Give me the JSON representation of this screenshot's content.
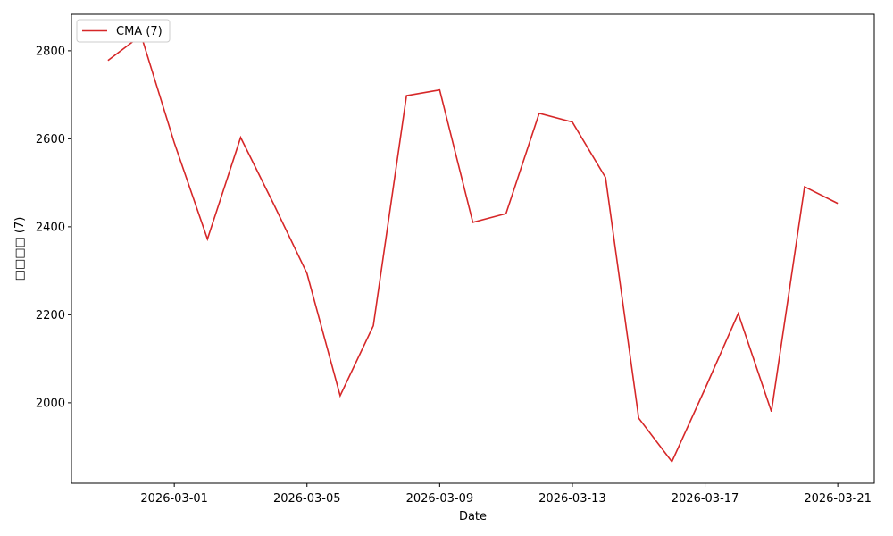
{
  "chart_data": {
    "type": "line",
    "xlabel": "Date",
    "ylabel": "□□□□ (7)",
    "x": [
      "2026-02-27",
      "2026-02-28",
      "2026-03-01",
      "2026-03-02",
      "2026-03-03",
      "2026-03-04",
      "2026-03-05",
      "2026-03-06",
      "2026-03-07",
      "2026-03-08",
      "2026-03-09",
      "2026-03-10",
      "2026-03-11",
      "2026-03-12",
      "2026-03-13",
      "2026-03-14",
      "2026-03-15",
      "2026-03-16",
      "2026-03-17",
      "2026-03-18",
      "2026-03-19",
      "2026-03-20",
      "2026-03-21"
    ],
    "series": [
      {
        "name": "CMA (7)",
        "color": "#d62728",
        "values": [
          2778,
          2835,
          2591,
          2372,
          2603,
          2451,
          2294,
          2016,
          2175,
          2698,
          2711,
          2410,
          2430,
          2658,
          2638,
          2512,
          1965,
          1866,
          2032,
          2203,
          1980,
          2491,
          2453
        ]
      }
    ],
    "xlim": [
      "2026-02-25T21:36",
      "2026-03-22T02:24"
    ],
    "xticks": [
      "2026-03-01",
      "2026-03-05",
      "2026-03-09",
      "2026-03-13",
      "2026-03-17",
      "2026-03-21"
    ],
    "ylim": [
      1817,
      2883
    ],
    "yticks": [
      2000,
      2200,
      2400,
      2600,
      2800
    ],
    "grid": false,
    "legend": "upper-left"
  }
}
